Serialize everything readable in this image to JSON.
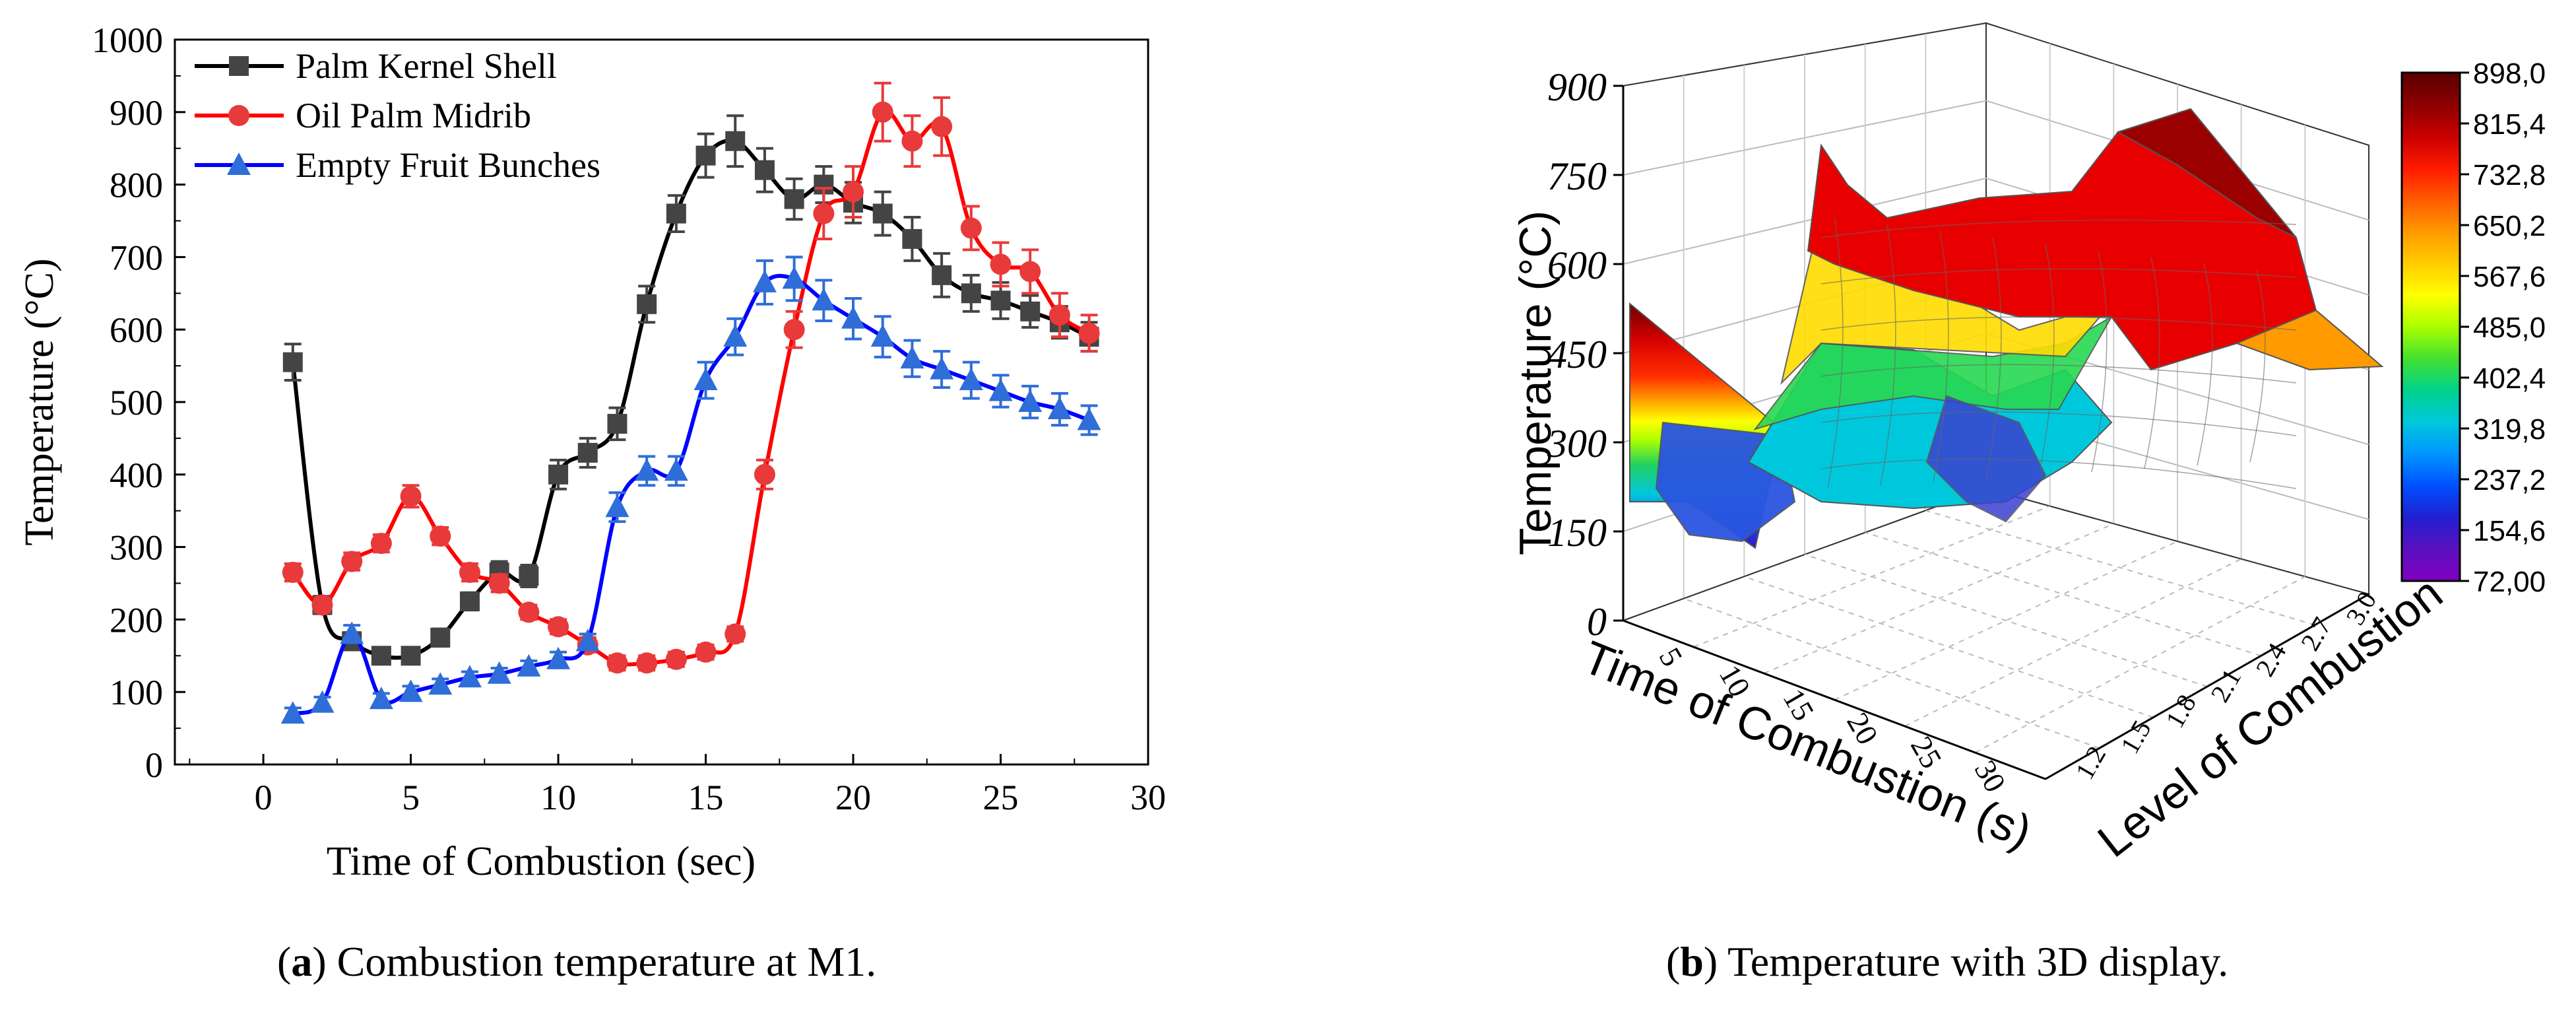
{
  "chart_data": [
    {
      "type": "line",
      "panel": "a",
      "caption": {
        "label": "a",
        "text": "Combustion temperature at M1."
      },
      "xlabel": "Time of Combustion (sec)",
      "ylabel": "Temperature (°C)",
      "xlim": [
        -3,
        30
      ],
      "ylim": [
        0,
        1000
      ],
      "xticks": [
        0,
        5,
        10,
        15,
        20,
        25,
        30
      ],
      "yticks": [
        0,
        100,
        200,
        300,
        400,
        500,
        600,
        700,
        800,
        900,
        1000
      ],
      "legend": "top-left",
      "series": [
        {
          "name": "Palm Kernel Shell",
          "color": "#000000",
          "markerColor": "#444444",
          "marker": "square",
          "x": [
            1,
            2,
            3,
            4,
            5,
            6,
            7,
            8,
            9,
            10,
            11,
            12,
            13,
            14,
            15,
            16,
            17,
            18,
            19,
            20,
            21,
            22,
            23,
            24,
            25,
            26,
            27,
            28
          ],
          "y": [
            555,
            220,
            170,
            150,
            150,
            175,
            225,
            265,
            260,
            400,
            430,
            470,
            635,
            760,
            840,
            860,
            820,
            780,
            800,
            775,
            760,
            725,
            675,
            650,
            640,
            625,
            610,
            590
          ],
          "err": [
            25,
            12,
            12,
            10,
            10,
            12,
            12,
            15,
            15,
            20,
            20,
            22,
            25,
            25,
            30,
            35,
            30,
            28,
            25,
            28,
            30,
            30,
            30,
            25,
            25,
            22,
            22,
            20
          ]
        },
        {
          "name": "Oil Palm Midrib",
          "color": "#ff0000",
          "markerColor": "#e83a3a",
          "marker": "circle",
          "x": [
            1,
            2,
            3,
            4,
            5,
            6,
            7,
            8,
            9,
            10,
            11,
            12,
            13,
            14,
            15,
            16,
            17,
            18,
            19,
            20,
            21,
            22,
            23,
            24,
            25,
            26,
            27,
            28
          ],
          "y": [
            265,
            220,
            280,
            305,
            370,
            315,
            265,
            250,
            210,
            190,
            165,
            140,
            140,
            145,
            155,
            180,
            400,
            600,
            760,
            790,
            900,
            860,
            880,
            740,
            690,
            680,
            620,
            595
          ],
          "err": [
            12,
            10,
            12,
            12,
            15,
            12,
            12,
            12,
            10,
            10,
            10,
            10,
            10,
            10,
            10,
            10,
            20,
            25,
            35,
            35,
            40,
            35,
            40,
            30,
            30,
            30,
            30,
            25
          ]
        },
        {
          "name": "Empty Fruit Bunches",
          "color": "#0000ff",
          "markerColor": "#2f6ed8",
          "marker": "triangle",
          "x": [
            1,
            2,
            3,
            4,
            5,
            6,
            7,
            8,
            9,
            10,
            11,
            12,
            13,
            14,
            15,
            16,
            17,
            18,
            19,
            20,
            21,
            22,
            23,
            24,
            25,
            26,
            27,
            28
          ],
          "y": [
            70,
            85,
            180,
            90,
            100,
            110,
            120,
            125,
            135,
            145,
            170,
            355,
            405,
            405,
            530,
            590,
            665,
            670,
            640,
            615,
            590,
            560,
            545,
            530,
            515,
            500,
            490,
            475
          ],
          "err": [
            8,
            8,
            12,
            8,
            8,
            8,
            8,
            8,
            8,
            10,
            10,
            20,
            20,
            20,
            25,
            25,
            30,
            30,
            28,
            28,
            28,
            25,
            25,
            25,
            22,
            22,
            22,
            20
          ]
        }
      ]
    },
    {
      "type": "surface3d",
      "panel": "b",
      "caption": {
        "label": "b",
        "text": "Temperature with 3D display."
      },
      "xlabel": "Time of Combustion (s)",
      "ylabel": "Level of Combustion",
      "zlabel": "Temperature (°C)",
      "zticks": [
        "0",
        "150",
        "300",
        "450",
        "600",
        "750",
        "900"
      ],
      "xticks": [
        "5",
        "10",
        "15",
        "20",
        "25",
        "30"
      ],
      "yticks": [
        "1.2",
        "1.5",
        "1.8",
        "2.1",
        "2.4",
        "2.7",
        "3.0"
      ],
      "colorbar": {
        "min": 72.0,
        "max": 898.0,
        "labels": [
          "898,0",
          "815,4",
          "732,8",
          "650,2",
          "567,6",
          "485,0",
          "402,4",
          "319,8",
          "237,2",
          "154,6",
          "72,00"
        ],
        "colors": [
          "#5a0000",
          "#8b0000",
          "#c80000",
          "#ff1a00",
          "#ff5a00",
          "#ff9900",
          "#ffcc00",
          "#ffff00",
          "#aaff00",
          "#44e030",
          "#00d28c",
          "#00c8dc",
          "#0096ff",
          "#0050ff",
          "#2020d0",
          "#5a10c0",
          "#8000c0"
        ]
      }
    }
  ]
}
